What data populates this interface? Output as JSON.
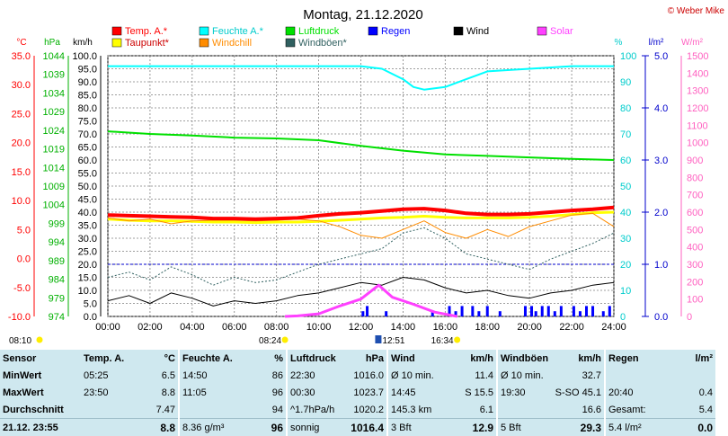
{
  "title": "Montag, 21.12.2020",
  "copyright": "© Weber Mike",
  "colors": {
    "temp": "#ff0000",
    "dew": "#ffff00",
    "humidity": "#00ffff",
    "windchill": "#ff8c00",
    "pressure": "#00e000",
    "gusts": "#306060",
    "rain": "#0000ff",
    "wind": "#000000",
    "solar": "#ff40ff",
    "grid": "#808080"
  },
  "legend": [
    {
      "label": "Temp. A.*",
      "color": "#ff0000"
    },
    {
      "label": "Feuchte A.*",
      "color": "#00ffff"
    },
    {
      "label": "Luftdruck",
      "color": "#00e000"
    },
    {
      "label": "Wind",
      "color": "#000000"
    },
    {
      "label": "Solar",
      "color": "#ff40ff"
    },
    {
      "label": "Taupunkt*",
      "color": "#ffff00"
    },
    {
      "label": "Windchill",
      "color": "#ff8c00"
    },
    {
      "label": "Windböen*",
      "color": "#306060"
    },
    {
      "label": "Regen",
      "color": "#0000ff"
    }
  ],
  "chart_data": {
    "type": "line",
    "title": "Montag, 21.12.2020",
    "grid": true,
    "x_ticks": [
      "00:00",
      "02:00",
      "04:00",
      "06:00",
      "08:00",
      "10:00",
      "12:00",
      "14:00",
      "16:00",
      "18:00",
      "20:00",
      "22:00",
      "24:00"
    ],
    "xlim": [
      0,
      24
    ],
    "axes": {
      "temp": {
        "label": "°C",
        "ticks": [
          "35.0",
          "30.0",
          "25.0",
          "20.0",
          "15.0",
          "10.0",
          "5.0",
          "0.0",
          "-5.0",
          "-10.0"
        ],
        "range": [
          -10,
          35
        ]
      },
      "pressure": {
        "label": "hPa",
        "ticks": [
          "1044",
          "1039",
          "1034",
          "1029",
          "1024",
          "1019",
          "1014",
          "1009",
          "1004",
          "999",
          "994",
          "989",
          "984",
          "979",
          "974"
        ],
        "range": [
          974,
          1044
        ]
      },
      "wind": {
        "label": "km/h",
        "ticks": [
          "100.0",
          "95.0",
          "90.0",
          "85.0",
          "80.0",
          "75.0",
          "70.0",
          "65.0",
          "60.0",
          "55.0",
          "50.0",
          "45.0",
          "40.0",
          "35.0",
          "30.0",
          "25.0",
          "20.0",
          "15.0",
          "10.0",
          "5.0",
          "0.0"
        ],
        "range": [
          0,
          100
        ]
      },
      "humidity": {
        "label": "%",
        "ticks": [
          "100",
          "90",
          "80",
          "70",
          "60",
          "50",
          "40",
          "30",
          "20",
          "10",
          "0"
        ],
        "range": [
          0,
          100
        ]
      },
      "rain": {
        "label": "l/m²",
        "ticks": [
          "5.0",
          "4.0",
          "3.0",
          "2.0",
          "1.0",
          "0.0"
        ],
        "range": [
          0,
          5
        ]
      },
      "solar": {
        "label": "W/m²",
        "ticks": [
          "1500",
          "1400",
          "1300",
          "1200",
          "1100",
          "1000",
          "900",
          "800",
          "700",
          "600",
          "500",
          "400",
          "300",
          "200",
          "100",
          "0"
        ],
        "range": [
          0,
          1500
        ]
      }
    },
    "series": [
      {
        "name": "Temp. A.*",
        "axis": "temp",
        "x": [
          0,
          1,
          2,
          3,
          4,
          5,
          6,
          7,
          8,
          9,
          10,
          11,
          12,
          13,
          14,
          15,
          16,
          17,
          18,
          19,
          20,
          21,
          22,
          23,
          24
        ],
        "values": [
          7.5,
          7.4,
          7.3,
          7.2,
          7.1,
          6.9,
          6.9,
          6.8,
          6.9,
          7.0,
          7.4,
          7.7,
          7.9,
          8.2,
          8.5,
          8.6,
          8.3,
          7.8,
          7.6,
          7.6,
          7.7,
          8.0,
          8.3,
          8.5,
          8.8
        ]
      },
      {
        "name": "Taupunkt*",
        "axis": "temp",
        "x": [
          0,
          1,
          2,
          3,
          4,
          5,
          6,
          7,
          8,
          9,
          10,
          11,
          12,
          13,
          14,
          15,
          16,
          17,
          18,
          19,
          20,
          21,
          22,
          23,
          24
        ],
        "values": [
          6.8,
          6.6,
          6.5,
          6.5,
          6.4,
          6.3,
          6.3,
          6.2,
          6.3,
          6.3,
          6.4,
          6.6,
          6.8,
          7.0,
          7.1,
          7.3,
          7.1,
          7.0,
          7.0,
          7.0,
          7.1,
          7.3,
          7.6,
          7.9,
          8.0
        ]
      },
      {
        "name": "Windchill",
        "axis": "temp",
        "x": [
          0,
          1,
          2,
          3,
          4,
          5,
          6,
          7,
          8,
          9,
          10,
          11,
          12,
          13,
          14,
          15,
          16,
          17,
          18,
          19,
          20,
          21,
          22,
          23,
          24
        ],
        "values": [
          7.0,
          6.5,
          6.8,
          6.0,
          6.5,
          6.6,
          6.6,
          6.5,
          6.6,
          6.8,
          6.5,
          5.5,
          4.0,
          3.5,
          5.0,
          6.5,
          4.5,
          3.5,
          5.0,
          3.8,
          5.5,
          6.5,
          7.5,
          7.8,
          5.5
        ]
      },
      {
        "name": "Feuchte A.*",
        "axis": "humidity",
        "x": [
          0,
          2,
          4,
          6,
          8,
          10,
          12,
          13,
          14,
          14.5,
          15,
          16,
          17,
          18,
          20,
          22,
          24
        ],
        "values": [
          96,
          96,
          96,
          96,
          96,
          96,
          96,
          95,
          91,
          88,
          87,
          88,
          91,
          94,
          95,
          96,
          96
        ]
      },
      {
        "name": "Luftdruck",
        "axis": "pressure",
        "x": [
          0,
          2,
          4,
          6,
          8,
          10,
          12,
          14,
          16,
          18,
          20,
          22,
          24
        ],
        "values": [
          1023.7,
          1023.0,
          1022.6,
          1022.0,
          1021.8,
          1021.3,
          1019.8,
          1018.5,
          1017.5,
          1017.1,
          1016.7,
          1016.3,
          1016.0
        ]
      },
      {
        "name": "Windböen*",
        "axis": "wind",
        "x": [
          0,
          1,
          2,
          3,
          4,
          5,
          6,
          7,
          8,
          9,
          10,
          11,
          12,
          13,
          14,
          15,
          16,
          17,
          18,
          19,
          20,
          21,
          22,
          23,
          24
        ],
        "values": [
          15,
          17,
          14,
          19,
          16,
          12,
          15,
          13,
          14,
          17,
          20,
          22,
          24,
          26,
          32,
          34,
          30,
          24,
          22,
          20,
          18,
          22,
          25,
          28,
          32
        ]
      },
      {
        "name": "Wind",
        "axis": "wind",
        "x": [
          0,
          1,
          2,
          3,
          4,
          5,
          6,
          7,
          8,
          9,
          10,
          11,
          12,
          13,
          14,
          15,
          16,
          17,
          18,
          19,
          20,
          21,
          22,
          23,
          24
        ],
        "values": [
          6,
          8,
          5,
          9,
          7,
          4,
          6,
          5,
          6,
          8,
          9,
          11,
          13,
          12,
          15,
          14,
          11,
          9,
          10,
          8,
          7,
          9,
          10,
          12,
          13
        ]
      },
      {
        "name": "Solar",
        "axis": "solar",
        "x": [
          8.4,
          9,
          10,
          11,
          12,
          12.85,
          13.5,
          14.5,
          15.5,
          16.57
        ],
        "values": [
          0,
          3,
          15,
          60,
          100,
          180,
          110,
          70,
          25,
          0
        ]
      }
    ],
    "rain_bars": {
      "name": "Regen",
      "axis": "rain",
      "x": [
        12.1,
        12.3,
        13.2,
        15.4,
        16.2,
        16.5,
        16.8,
        17.3,
        17.6,
        18.0,
        18.6,
        19.8,
        20.1,
        20.3,
        20.6,
        20.9,
        21.2,
        21.5,
        22.1,
        22.4,
        22.7,
        23.0,
        23.5,
        23.8
      ],
      "values": [
        0.1,
        0.2,
        0.1,
        0.1,
        0.2,
        0.1,
        0.2,
        0.2,
        0.1,
        0.2,
        0.1,
        0.2,
        0.2,
        0.1,
        0.2,
        0.2,
        0.1,
        0.2,
        0.2,
        0.1,
        0.2,
        0.2,
        0.1,
        0.2
      ]
    },
    "sun_events": {
      "sunrise": "08:24",
      "noon": "12:51",
      "sunset": "16:34"
    },
    "left_time": "08:10"
  },
  "table": {
    "header": {
      "sensor": "Sensor",
      "temp": "Temp. A.",
      "temp_unit": "°C",
      "hum": "Feuchte A.",
      "hum_unit": "%",
      "press": "Luftdruck",
      "press_unit": "hPa",
      "wind": "Wind",
      "wind_unit": "km/h",
      "gust": "Windböen",
      "gust_unit": "km/h",
      "rain": "Regen",
      "rain_unit": "l/m²"
    },
    "rows": [
      {
        "label": "MinWert",
        "temp_t": "05:25",
        "temp_v": "6.5",
        "hum_t": "14:50",
        "hum_v": "86",
        "press_t": "22:30",
        "press_v": "1016.0",
        "wind_t": "Ø 10 min.",
        "wind_v": "11.4",
        "gust_t": "Ø 10 min.",
        "gust_v": "32.7",
        "rain_t": "",
        "rain_v": ""
      },
      {
        "label": "MaxWert",
        "temp_t": "23:50",
        "temp_v": "8.8",
        "hum_t": "11:05",
        "hum_v": "96",
        "press_t": "00:30",
        "press_v": "1023.7",
        "wind_t": "14:45",
        "wind_v": "S 15.5",
        "gust_t": "19:30",
        "gust_v": "S-SO 45.1",
        "rain_t": "20:40",
        "rain_v": "0.4"
      },
      {
        "label": "Durchschnitt",
        "temp_t": "",
        "temp_v": "7.47",
        "hum_t": "",
        "hum_v": "94",
        "press_t": "^1.7hPa/h",
        "press_v": "1020.2",
        "wind_t": "145.3 km",
        "wind_v": "6.1",
        "gust_t": "",
        "gust_v": "16.6",
        "rain_t": "Gesamt:",
        "rain_v": "5.4"
      },
      {
        "label": "21.12. 23:55",
        "temp_t": "",
        "temp_v": "8.8",
        "hum_t": "8.36 g/m³",
        "hum_v": "96",
        "press_t": "sonnig",
        "press_v": "1016.4",
        "wind_t": "3 Bft",
        "wind_v": "12.9",
        "gust_t": "5 Bft",
        "gust_v": "29.3",
        "rain_t": "5.4 l/m²",
        "rain_v": "0.0"
      }
    ]
  }
}
